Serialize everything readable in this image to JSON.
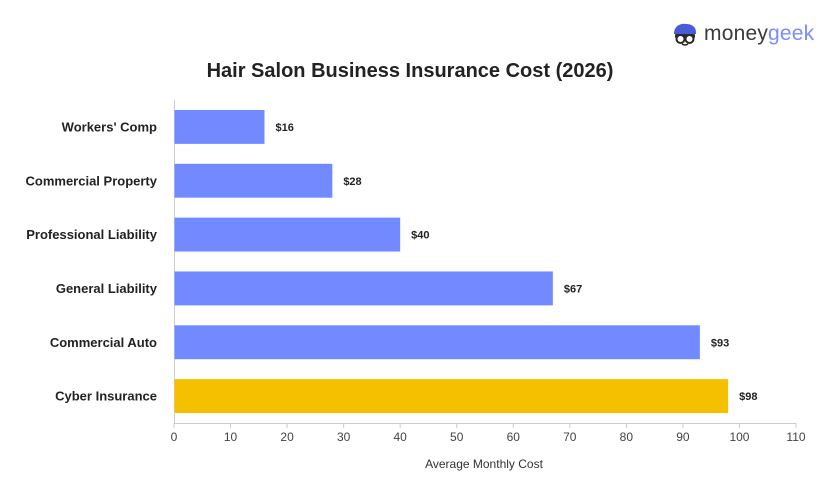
{
  "brand": {
    "logo_icon": "moneygeek-mascot-icon",
    "name_part1": "money",
    "name_part2": "geek"
  },
  "chart_data": {
    "type": "bar",
    "orientation": "horizontal",
    "title": "Hair Salon Business Insurance Cost (2026)",
    "xlabel": "Average Monthly Cost",
    "ylabel": "",
    "categories": [
      "Workers' Comp",
      "Commercial Property",
      "Professional Liability",
      "General Liability",
      "Commercial Auto",
      "Cyber Insurance"
    ],
    "values": [
      16,
      28,
      40,
      67,
      93,
      98
    ],
    "value_labels": [
      "$16",
      "$28",
      "$40",
      "$67",
      "$93",
      "$98"
    ],
    "bar_colors": [
      "#7389ff",
      "#7389ff",
      "#7389ff",
      "#7389ff",
      "#7389ff",
      "#f5c000"
    ],
    "xlim": [
      0,
      110
    ],
    "xticks": [
      0,
      10,
      20,
      30,
      40,
      50,
      60,
      70,
      80,
      90,
      100,
      110
    ],
    "grid": false
  }
}
